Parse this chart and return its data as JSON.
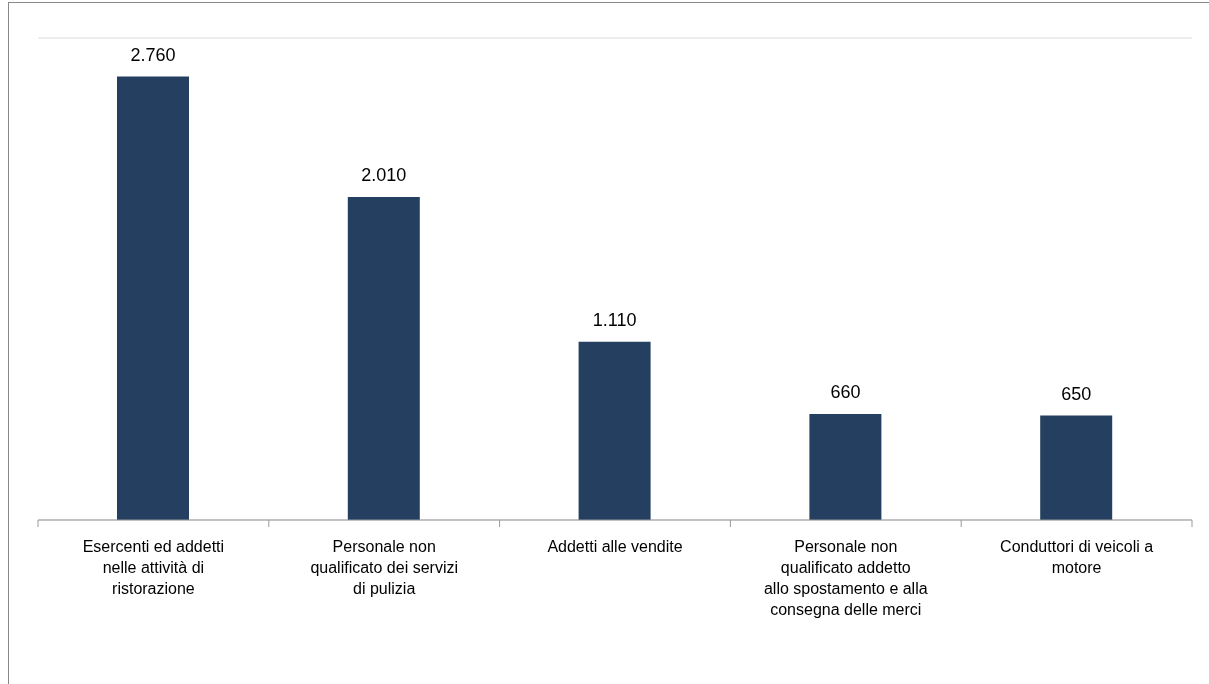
{
  "chart_data": {
    "type": "bar",
    "categories": [
      "Esercenti ed addetti nelle attività di ristorazione",
      "Personale non qualificato dei servizi di pulizia",
      "Addetti alle vendite",
      "Personale non qualificato addetto allo spostamento e alla consegna delle merci",
      "Conduttori di veicoli a motore"
    ],
    "values": [
      2760,
      2010,
      1110,
      660,
      650
    ],
    "value_labels": [
      "2.760",
      "2.010",
      "1.110",
      "660",
      "650"
    ],
    "color": "#243f60",
    "ylim": [
      0,
      3000
    ],
    "tick_labels": "x",
    "grid": "y"
  }
}
